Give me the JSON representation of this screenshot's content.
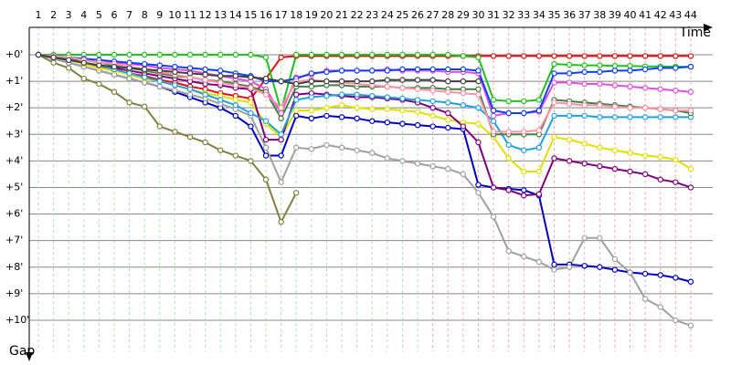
{
  "chart_data": {
    "type": "line",
    "x_label": "Time",
    "y_label": "Gap",
    "x": [
      1,
      2,
      3,
      4,
      5,
      6,
      7,
      8,
      9,
      10,
      11,
      12,
      13,
      14,
      15,
      16,
      17,
      18,
      19,
      20,
      21,
      22,
      23,
      24,
      25,
      26,
      27,
      28,
      29,
      30,
      31,
      32,
      33,
      34,
      35,
      36,
      37,
      38,
      39,
      40,
      41,
      42,
      43,
      44
    ],
    "xticks": [
      1,
      2,
      3,
      4,
      5,
      6,
      7,
      8,
      9,
      10,
      11,
      12,
      13,
      14,
      15,
      16,
      17,
      18,
      19,
      20,
      21,
      22,
      23,
      24,
      25,
      26,
      27,
      28,
      29,
      30,
      31,
      32,
      33,
      34,
      35,
      36,
      37,
      38,
      39,
      40,
      41,
      42,
      43,
      44
    ],
    "xlim": [
      0.4,
      45.45
    ],
    "ylim": [
      -1.03,
      11.17
    ],
    "y_inverted": true,
    "yticks": [
      {
        "value": 0,
        "label": "+0'"
      },
      {
        "value": 1,
        "label": "+1'"
      },
      {
        "value": 2,
        "label": "+2'"
      },
      {
        "value": 3,
        "label": "+3'"
      },
      {
        "value": 4,
        "label": "+4'"
      },
      {
        "value": 5,
        "label": "+5'"
      },
      {
        "value": 6,
        "label": "+6'"
      },
      {
        "value": 7,
        "label": "+7'"
      },
      {
        "value": 8,
        "label": "+8'"
      },
      {
        "value": 9,
        "label": "+9'"
      },
      {
        "value": 10,
        "label": "+10'"
      }
    ],
    "grid": true,
    "series": [
      {
        "color": "#e01010",
        "values": [
          0,
          0.1,
          0.2,
          0.3,
          0.45,
          0.6,
          0.7,
          0.8,
          0.95,
          1.05,
          1.2,
          1.3,
          1.45,
          1.55,
          1.65,
          0.9,
          0.1,
          0.05,
          0.05,
          0.05,
          0.05,
          0.05,
          0.05,
          0.05,
          0.05,
          0.05,
          0.05,
          0.05,
          0.05,
          0.05,
          0.05,
          0.05,
          0.05,
          0.05,
          0.05,
          0.05,
          0.05,
          0.05,
          0.05,
          0.05,
          0.05,
          0.05,
          0.05,
          0.05
        ]
      },
      {
        "color": "#20c020",
        "values": [
          0,
          0,
          0,
          0,
          0,
          0,
          0,
          0,
          0,
          0,
          0,
          0,
          0,
          0,
          0,
          0.1,
          2.1,
          0,
          0,
          0,
          0,
          0,
          0,
          0,
          0,
          0,
          0,
          0,
          0.05,
          0.1,
          1.7,
          1.75,
          1.75,
          1.7,
          0.35,
          0.38,
          0.4,
          0.4,
          0.42,
          0.42,
          0.44,
          0.44,
          0.45,
          0.45
        ]
      },
      {
        "color": "#0000c0",
        "values": [
          0,
          0.15,
          0.3,
          0.45,
          0.6,
          0.75,
          0.9,
          1.05,
          1.2,
          1.4,
          1.6,
          1.8,
          2.0,
          2.3,
          2.7,
          3.8,
          3.8,
          2.3,
          2.4,
          2.3,
          2.35,
          2.4,
          2.5,
          2.55,
          2.6,
          2.65,
          2.7,
          2.75,
          2.8,
          4.9,
          5.0,
          5.05,
          5.1,
          5.3,
          7.9,
          7.9,
          7.95,
          8.0,
          8.1,
          8.2,
          8.25,
          8.3,
          8.4,
          8.55
        ]
      },
      {
        "color": "#a0a0a0",
        "values": [
          0,
          0.15,
          0.3,
          0.45,
          0.6,
          0.75,
          0.9,
          1.05,
          1.2,
          1.35,
          1.5,
          1.65,
          1.85,
          2.05,
          2.3,
          3.5,
          4.8,
          3.5,
          3.55,
          3.4,
          3.5,
          3.6,
          3.7,
          3.9,
          4.0,
          4.1,
          4.2,
          4.3,
          4.5,
          5.2,
          6.1,
          7.4,
          7.6,
          7.8,
          8.1,
          8.0,
          6.9,
          6.9,
          7.7,
          8.2,
          9.2,
          9.5,
          10.0,
          10.2
        ]
      },
      {
        "color": "#808040",
        "values": [
          0,
          0.3,
          0.5,
          0.9,
          1.1,
          1.4,
          1.8,
          1.95,
          2.7,
          2.9,
          3.1,
          3.3,
          3.6,
          3.8,
          4.0,
          4.7,
          6.3,
          5.2,
          null,
          null,
          null,
          null,
          null,
          null,
          null,
          null,
          null,
          null,
          null,
          null,
          null,
          null,
          null,
          null,
          null,
          null,
          null,
          null,
          null,
          null,
          null,
          null,
          null,
          null
        ]
      },
      {
        "color": "#e0e000",
        "values": [
          0,
          0.1,
          0.2,
          0.35,
          0.5,
          0.6,
          0.75,
          0.9,
          1.0,
          1.15,
          1.3,
          1.45,
          1.55,
          1.7,
          1.8,
          2.6,
          3.1,
          2.1,
          2.1,
          2.0,
          1.9,
          2.0,
          2.05,
          2.05,
          2.1,
          2.15,
          2.3,
          2.45,
          2.55,
          2.6,
          3.1,
          3.9,
          4.4,
          4.4,
          3.1,
          3.2,
          3.35,
          3.5,
          3.6,
          3.7,
          3.8,
          3.85,
          3.95,
          4.3
        ]
      },
      {
        "color": "#800080",
        "values": [
          0,
          0.1,
          0.2,
          0.3,
          0.4,
          0.5,
          0.6,
          0.7,
          0.8,
          0.9,
          1.0,
          1.1,
          1.15,
          1.25,
          1.3,
          3.2,
          3.2,
          1.5,
          1.45,
          1.5,
          1.55,
          1.6,
          1.6,
          1.65,
          1.7,
          1.8,
          2.0,
          2.2,
          2.7,
          3.3,
          5.0,
          5.1,
          5.3,
          5.25,
          3.9,
          4.0,
          4.1,
          4.2,
          4.3,
          4.4,
          4.5,
          4.7,
          4.8,
          5.0
        ]
      },
      {
        "color": "#e050e0",
        "values": [
          0,
          0.05,
          0.1,
          0.15,
          0.2,
          0.3,
          0.35,
          0.4,
          0.5,
          0.55,
          0.6,
          0.7,
          0.8,
          0.9,
          1.0,
          1.3,
          2.2,
          0.85,
          0.75,
          0.6,
          0.6,
          0.6,
          0.6,
          0.55,
          0.6,
          0.6,
          0.6,
          0.65,
          0.65,
          0.7,
          2.3,
          2.2,
          2.2,
          2.15,
          1.05,
          1.05,
          1.1,
          1.1,
          1.15,
          1.2,
          1.25,
          1.3,
          1.35,
          1.4
        ]
      },
      {
        "color": "#20a0e0",
        "values": [
          0,
          0.1,
          0.2,
          0.3,
          0.4,
          0.55,
          0.7,
          0.85,
          1.0,
          1.15,
          1.3,
          1.5,
          1.7,
          1.9,
          2.2,
          2.5,
          3.0,
          1.7,
          1.6,
          1.55,
          1.5,
          1.5,
          1.55,
          1.6,
          1.65,
          1.7,
          1.75,
          1.8,
          1.9,
          2.0,
          2.5,
          3.4,
          3.6,
          3.5,
          2.3,
          2.3,
          2.3,
          2.35,
          2.35,
          2.35,
          2.35,
          2.35,
          2.35,
          2.35
        ]
      },
      {
        "color": "#1040f0",
        "values": [
          0,
          0.05,
          0.1,
          0.15,
          0.2,
          0.25,
          0.3,
          0.35,
          0.4,
          0.45,
          0.5,
          0.55,
          0.6,
          0.7,
          0.8,
          1.0,
          1.0,
          0.9,
          0.7,
          0.65,
          0.6,
          0.6,
          0.6,
          0.6,
          0.55,
          0.55,
          0.55,
          0.55,
          0.55,
          0.6,
          2.1,
          2.2,
          2.2,
          2.1,
          0.7,
          0.7,
          0.65,
          0.65,
          0.6,
          0.6,
          0.55,
          0.5,
          0.5,
          0.45
        ]
      },
      {
        "color": "#408040",
        "values": [
          0,
          0.05,
          0.15,
          0.2,
          0.3,
          0.4,
          0.5,
          0.6,
          0.7,
          0.8,
          0.85,
          0.95,
          1.0,
          1.1,
          1.2,
          1.4,
          2.4,
          1.2,
          1.2,
          1.15,
          1.15,
          1.2,
          1.2,
          1.2,
          1.25,
          1.25,
          1.25,
          1.3,
          1.3,
          1.3,
          3.0,
          3.0,
          3.0,
          3.0,
          1.7,
          1.75,
          1.8,
          1.85,
          1.9,
          1.95,
          2.0,
          2.05,
          2.1,
          2.2
        ]
      },
      {
        "color": "#ff90a8",
        "values": [
          0,
          0.05,
          0.1,
          0.2,
          0.3,
          0.35,
          0.45,
          0.55,
          0.65,
          0.75,
          0.85,
          0.95,
          1.05,
          1.15,
          1.25,
          1.5,
          2.0,
          1.0,
          0.95,
          1.0,
          1.05,
          1.1,
          1.15,
          1.2,
          1.25,
          1.3,
          1.35,
          1.4,
          1.45,
          1.5,
          2.9,
          2.9,
          2.9,
          2.85,
          1.8,
          1.85,
          1.9,
          1.9,
          1.95,
          2.0,
          2.0,
          2.05,
          2.1,
          2.1
        ]
      },
      {
        "color": "#404040",
        "values": [
          0,
          0.1,
          0.2,
          0.3,
          0.4,
          0.45,
          0.5,
          0.55,
          0.6,
          0.65,
          0.7,
          0.75,
          0.8,
          0.8,
          0.85,
          0.9,
          1.0,
          1.1,
          1.0,
          1.0,
          1.0,
          1.0,
          1.0,
          0.95,
          0.95,
          0.95,
          0.95,
          1.0,
          1.0,
          1.0,
          null,
          null,
          null,
          null,
          null,
          null,
          null,
          null,
          null,
          null,
          null,
          null,
          null,
          null
        ]
      }
    ]
  }
}
